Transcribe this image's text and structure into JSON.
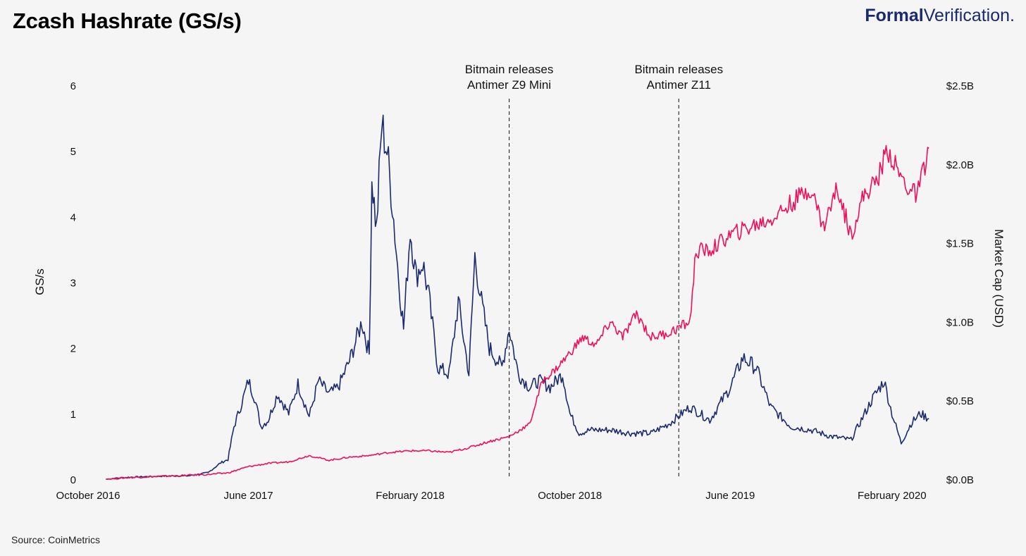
{
  "header": {
    "title": "Zcash Hashrate (GS/s)",
    "brand_bold": "Formal",
    "brand_light": "Verification."
  },
  "footer": {
    "source": "Source: CoinMetrics"
  },
  "chart_data": {
    "type": "line",
    "ylabel_left": "GS/s",
    "ylabel_right": "Market Cap (USD)",
    "x_axis": {
      "start": "2016-10-01",
      "end": "2020-04-01",
      "ticks": [
        {
          "date": "2016-10-01",
          "label": "October 2016"
        },
        {
          "date": "2017-06-01",
          "label": "June 2017"
        },
        {
          "date": "2018-02-01",
          "label": "February 2018"
        },
        {
          "date": "2018-10-01",
          "label": "October 2018"
        },
        {
          "date": "2019-06-01",
          "label": "June 2019"
        },
        {
          "date": "2020-02-01",
          "label": "February 2020"
        }
      ]
    },
    "y_left": {
      "min": 0,
      "max": 6,
      "ticks": [
        "0",
        "1",
        "2",
        "3",
        "4",
        "5",
        "6"
      ]
    },
    "y_right": {
      "min": 0,
      "max": 2.5,
      "ticks": [
        "$0.0B",
        "$0.5B",
        "$1.0B",
        "$1.5B",
        "$2.0B",
        "$2.5B"
      ]
    },
    "annotations": [
      {
        "date": "2018-07-01",
        "lines": [
          "Bitmain releases",
          "Antimer Z9 Mini"
        ]
      },
      {
        "date": "2019-03-15",
        "lines": [
          "Bitmain releases",
          "Antimer Z11"
        ]
      }
    ],
    "series": [
      {
        "name": "Hashrate",
        "axis": "left",
        "color": "#1b2a6e",
        "points": [
          [
            "2016-10-28",
            0.0
          ],
          [
            "2016-12-01",
            0.03
          ],
          [
            "2017-01-01",
            0.04
          ],
          [
            "2017-02-01",
            0.05
          ],
          [
            "2017-03-01",
            0.05
          ],
          [
            "2017-04-01",
            0.1
          ],
          [
            "2017-04-20",
            0.25
          ],
          [
            "2017-05-01",
            0.3
          ],
          [
            "2017-05-10",
            0.8
          ],
          [
            "2017-05-20",
            1.1
          ],
          [
            "2017-06-01",
            1.5
          ],
          [
            "2017-06-10",
            1.25
          ],
          [
            "2017-06-20",
            0.8
          ],
          [
            "2017-07-01",
            0.9
          ],
          [
            "2017-07-15",
            1.3
          ],
          [
            "2017-08-01",
            1.0
          ],
          [
            "2017-08-15",
            1.45
          ],
          [
            "2017-09-01",
            0.95
          ],
          [
            "2017-09-15",
            1.5
          ],
          [
            "2017-10-01",
            1.3
          ],
          [
            "2017-10-15",
            1.4
          ],
          [
            "2017-11-01",
            1.8
          ],
          [
            "2017-11-20",
            2.4
          ],
          [
            "2017-12-01",
            1.9
          ],
          [
            "2017-12-05",
            4.6
          ],
          [
            "2017-12-12",
            3.8
          ],
          [
            "2017-12-20",
            5.4
          ],
          [
            "2017-12-28",
            5.0
          ],
          [
            "2018-01-05",
            4.2
          ],
          [
            "2018-01-15",
            3.0
          ],
          [
            "2018-01-22",
            2.3
          ],
          [
            "2018-02-01",
            3.8
          ],
          [
            "2018-02-10",
            3.1
          ],
          [
            "2018-02-20",
            3.3
          ],
          [
            "2018-03-01",
            2.8
          ],
          [
            "2018-03-15",
            1.7
          ],
          [
            "2018-04-01",
            1.6
          ],
          [
            "2018-04-15",
            2.7
          ],
          [
            "2018-05-01",
            1.6
          ],
          [
            "2018-05-10",
            3.4
          ],
          [
            "2018-05-20",
            2.7
          ],
          [
            "2018-06-01",
            2.0
          ],
          [
            "2018-06-20",
            1.7
          ],
          [
            "2018-07-01",
            2.3
          ],
          [
            "2018-07-15",
            1.6
          ],
          [
            "2018-08-01",
            1.4
          ],
          [
            "2018-08-15",
            1.5
          ],
          [
            "2018-09-01",
            1.4
          ],
          [
            "2018-09-20",
            1.6
          ],
          [
            "2018-10-01",
            1.0
          ],
          [
            "2018-10-15",
            0.7
          ],
          [
            "2018-11-01",
            0.75
          ],
          [
            "2018-12-01",
            0.75
          ],
          [
            "2019-01-01",
            0.7
          ],
          [
            "2019-02-01",
            0.7
          ],
          [
            "2019-03-01",
            0.85
          ],
          [
            "2019-04-01",
            1.1
          ],
          [
            "2019-05-01",
            0.9
          ],
          [
            "2019-06-01",
            1.4
          ],
          [
            "2019-06-20",
            1.85
          ],
          [
            "2019-07-10",
            1.7
          ],
          [
            "2019-08-01",
            1.1
          ],
          [
            "2019-09-01",
            0.8
          ],
          [
            "2019-10-01",
            0.75
          ],
          [
            "2019-11-01",
            0.65
          ],
          [
            "2019-12-01",
            0.6
          ],
          [
            "2020-01-01",
            1.2
          ],
          [
            "2020-01-20",
            1.5
          ],
          [
            "2020-02-01",
            1.0
          ],
          [
            "2020-02-15",
            0.55
          ],
          [
            "2020-03-01",
            0.85
          ],
          [
            "2020-03-15",
            1.0
          ],
          [
            "2020-03-28",
            0.92
          ]
        ]
      },
      {
        "name": "Market Cap",
        "axis": "right",
        "color": "#f0105a",
        "points": [
          [
            "2016-10-28",
            0.0
          ],
          [
            "2016-12-01",
            0.01
          ],
          [
            "2017-02-01",
            0.02
          ],
          [
            "2017-04-01",
            0.03
          ],
          [
            "2017-05-01",
            0.04
          ],
          [
            "2017-06-01",
            0.08
          ],
          [
            "2017-07-01",
            0.1
          ],
          [
            "2017-08-01",
            0.11
          ],
          [
            "2017-09-01",
            0.15
          ],
          [
            "2017-10-01",
            0.12
          ],
          [
            "2017-11-01",
            0.14
          ],
          [
            "2017-12-01",
            0.15
          ],
          [
            "2018-01-01",
            0.17
          ],
          [
            "2018-02-01",
            0.18
          ],
          [
            "2018-03-01",
            0.18
          ],
          [
            "2018-04-01",
            0.17
          ],
          [
            "2018-05-01",
            0.2
          ],
          [
            "2018-06-01",
            0.24
          ],
          [
            "2018-07-01",
            0.27
          ],
          [
            "2018-08-01",
            0.35
          ],
          [
            "2018-08-20",
            0.62
          ],
          [
            "2018-09-10",
            0.7
          ],
          [
            "2018-10-01",
            0.8
          ],
          [
            "2018-10-20",
            0.9
          ],
          [
            "2018-11-10",
            0.85
          ],
          [
            "2018-12-01",
            1.0
          ],
          [
            "2018-12-20",
            0.9
          ],
          [
            "2019-01-10",
            1.05
          ],
          [
            "2019-02-01",
            0.9
          ],
          [
            "2019-03-01",
            0.93
          ],
          [
            "2019-04-01",
            1.0
          ],
          [
            "2019-04-10",
            1.45
          ],
          [
            "2019-05-01",
            1.45
          ],
          [
            "2019-06-01",
            1.55
          ],
          [
            "2019-07-01",
            1.6
          ],
          [
            "2019-08-01",
            1.65
          ],
          [
            "2019-09-01",
            1.75
          ],
          [
            "2019-10-01",
            1.85
          ],
          [
            "2019-10-20",
            1.6
          ],
          [
            "2019-11-10",
            1.85
          ],
          [
            "2019-12-01",
            1.55
          ],
          [
            "2019-12-20",
            1.8
          ],
          [
            "2020-01-10",
            1.9
          ],
          [
            "2020-01-25",
            2.1
          ],
          [
            "2020-02-10",
            1.95
          ],
          [
            "2020-02-25",
            1.85
          ],
          [
            "2020-03-10",
            1.8
          ],
          [
            "2020-03-28",
            2.1
          ]
        ]
      }
    ]
  }
}
